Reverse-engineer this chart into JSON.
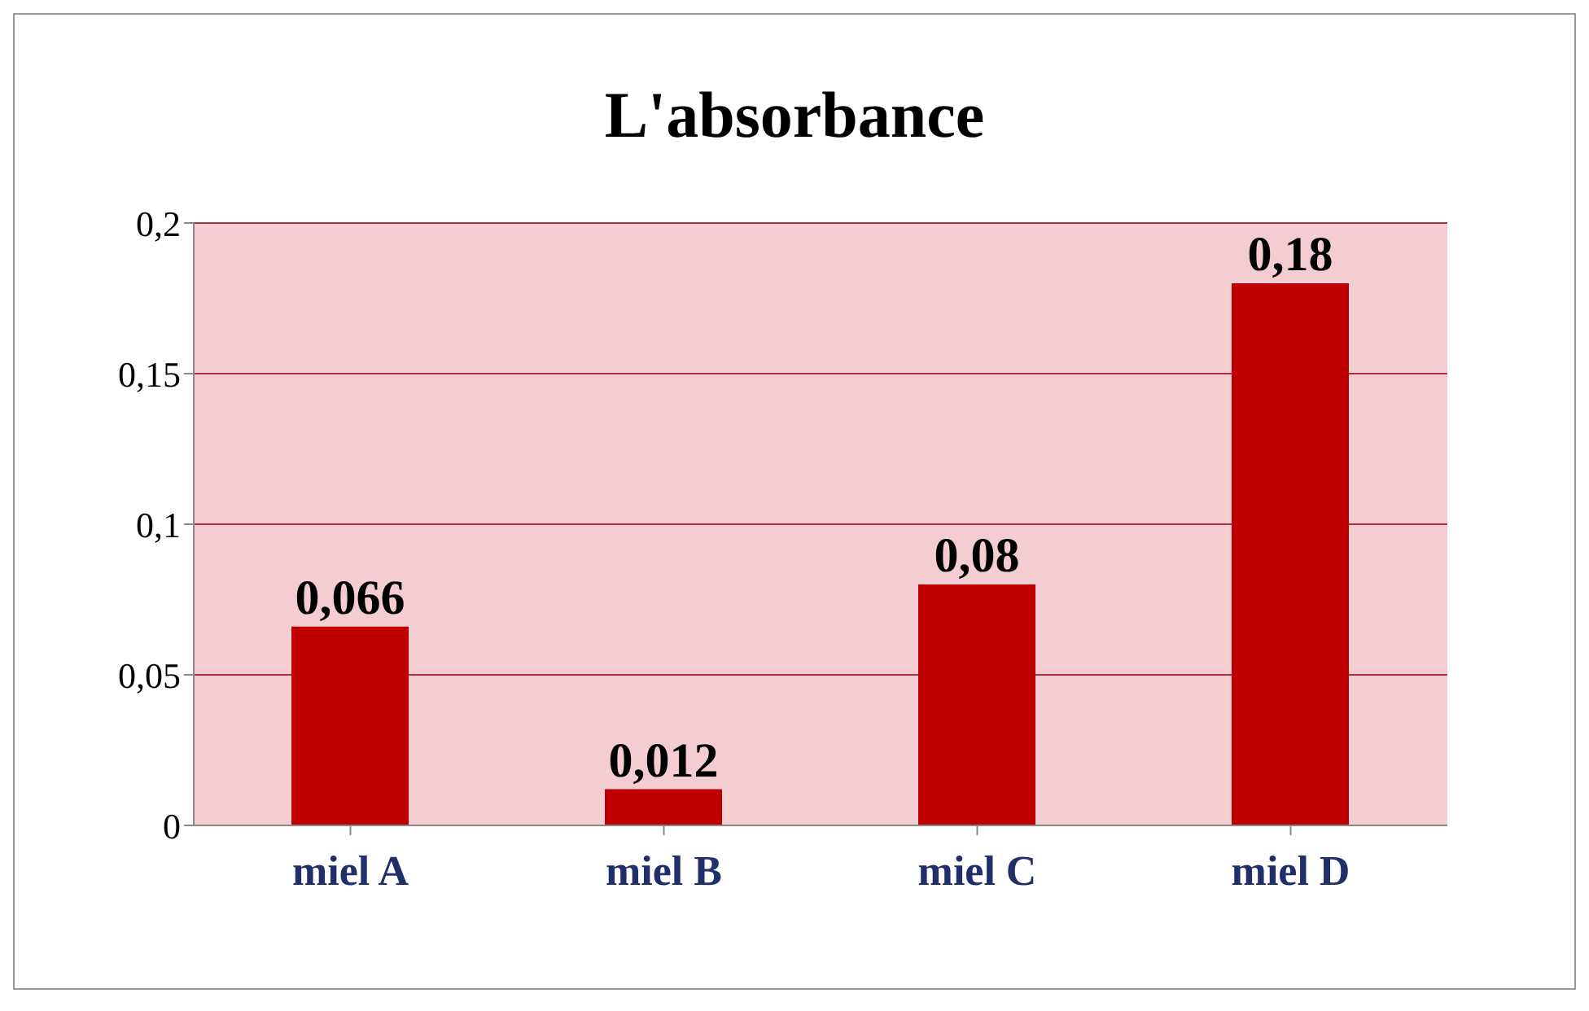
{
  "chart_data": {
    "type": "bar",
    "title": "L'absorbance",
    "categories": [
      "miel A",
      "miel B",
      "miel C",
      "miel D"
    ],
    "values": [
      0.066,
      0.012,
      0.08,
      0.18
    ],
    "value_labels": [
      "0,066",
      "0,012",
      "0,08",
      "0,18"
    ],
    "color": "#c00000",
    "ylim": [
      0,
      0.2
    ],
    "yticks": [
      {
        "value": 0,
        "label": "0"
      },
      {
        "value": 0.05,
        "label": "0,05"
      },
      {
        "value": 0.1,
        "label": "0,1"
      },
      {
        "value": 0.15,
        "label": "0,15"
      },
      {
        "value": 0.2,
        "label": "0,2"
      }
    ],
    "grid": "y",
    "legend": false
  }
}
